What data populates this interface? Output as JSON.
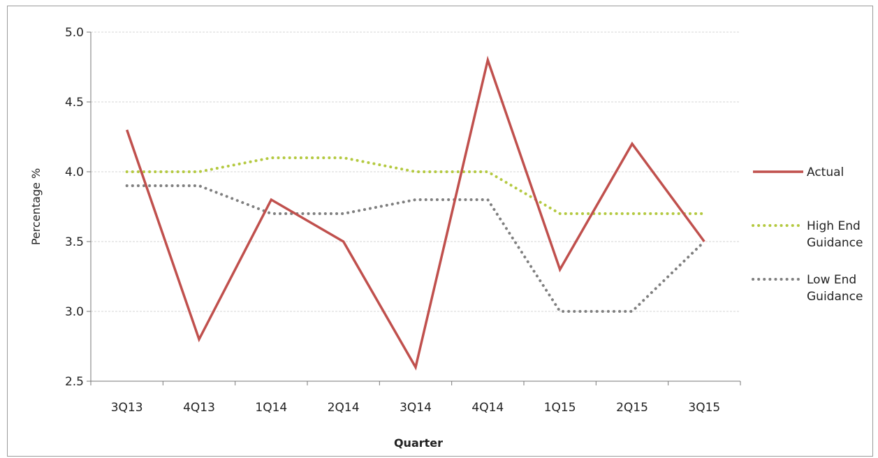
{
  "chart_data": {
    "type": "line",
    "categories": [
      "3Q13",
      "4Q13",
      "1Q14",
      "2Q14",
      "3Q14",
      "4Q14",
      "1Q15",
      "2Q15",
      "3Q15"
    ],
    "series": [
      {
        "name": "Actual",
        "values": [
          4.3,
          2.8,
          3.8,
          3.5,
          2.6,
          4.8,
          3.3,
          4.2,
          3.5
        ],
        "color": "#c0504d",
        "style": "solid"
      },
      {
        "name": "High End Guidance",
        "values": [
          4.0,
          4.0,
          4.1,
          4.1,
          4.0,
          4.0,
          3.7,
          3.7,
          3.7
        ],
        "color": "#b4c940",
        "style": "dotted"
      },
      {
        "name": "Low End Guidance",
        "values": [
          3.9,
          3.9,
          3.7,
          3.7,
          3.8,
          3.8,
          3.0,
          3.0,
          3.5
        ],
        "color": "#7f7f7f",
        "style": "dotted"
      }
    ],
    "yticks": [
      "2.5",
      "3.0",
      "3.5",
      "4.0",
      "4.5",
      "5.0"
    ],
    "ylim": [
      2.5,
      5.0
    ],
    "xlabel": "Quarter",
    "ylabel": "Percentage %",
    "legend_labels": [
      [
        "Actual"
      ],
      [
        "High End",
        "Guidance"
      ],
      [
        "Low End",
        "Guidance"
      ]
    ],
    "grid": true,
    "legend_position": "right"
  }
}
